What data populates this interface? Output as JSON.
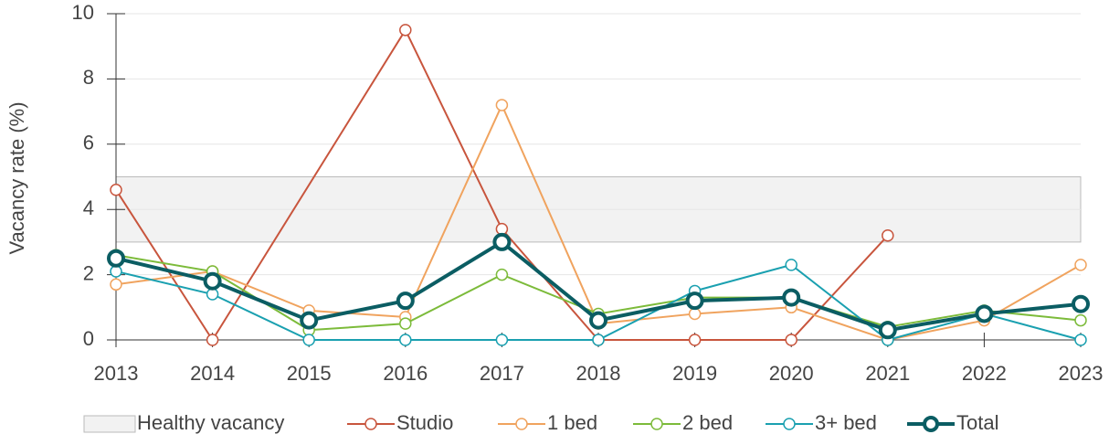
{
  "chart_data": {
    "type": "line",
    "y_label": "Vacancy rate (%)",
    "x": [
      2013,
      2014,
      2015,
      2016,
      2017,
      2018,
      2019,
      2020,
      2021,
      2022,
      2023
    ],
    "xlim": [
      2013,
      2023
    ],
    "xticks": [
      2013,
      2014,
      2015,
      2016,
      2017,
      2018,
      2019,
      2020,
      2021,
      2022,
      2023
    ],
    "ylim": [
      0,
      10
    ],
    "yticks": [
      0,
      2,
      4,
      6,
      8,
      10
    ],
    "grid": true,
    "span_gaps": true,
    "band": {
      "name": "Healthy vacancy",
      "range": [
        3,
        5
      ],
      "color": "#f2f2f2"
    },
    "legend": "bottom",
    "series": [
      {
        "name": "Studio",
        "color": "#c8553d",
        "values": [
          4.6,
          0,
          null,
          9.5,
          3.4,
          0,
          0,
          0,
          3.2,
          null,
          null
        ]
      },
      {
        "name": "1 bed",
        "color": "#f0a35e",
        "values": [
          1.7,
          2.1,
          0.9,
          0.7,
          7.2,
          0.5,
          0.8,
          1.0,
          0,
          0.6,
          2.3
        ]
      },
      {
        "name": "2 bed",
        "color": "#7cbb3a",
        "values": [
          2.6,
          2.1,
          0.3,
          0.5,
          2.0,
          0.8,
          1.3,
          1.3,
          0.4,
          0.9,
          0.6
        ]
      },
      {
        "name": "3+ bed",
        "color": "#1aa0b0",
        "values": [
          2.1,
          1.4,
          0,
          0,
          0,
          0,
          1.5,
          2.3,
          0,
          0.8,
          0
        ]
      },
      {
        "name": "Total",
        "color": "#0b5d63",
        "values": [
          2.5,
          1.8,
          0.6,
          1.2,
          3.0,
          0.6,
          1.2,
          1.3,
          0.3,
          0.8,
          1.1
        ]
      }
    ]
  }
}
